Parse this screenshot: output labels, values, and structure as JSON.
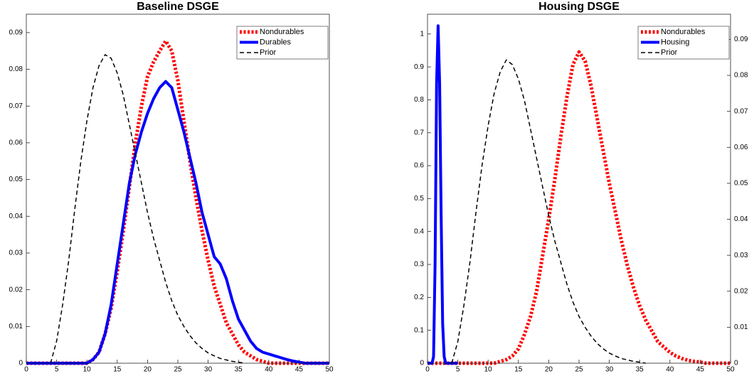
{
  "chart_data": [
    {
      "type": "line",
      "title": "Baseline DSGE",
      "x": [
        0,
        1,
        2,
        3,
        4,
        5,
        6,
        7,
        8,
        9,
        10,
        11,
        12,
        13,
        14,
        15,
        16,
        17,
        18,
        19,
        20,
        21,
        22,
        23,
        24,
        25,
        26,
        27,
        28,
        29,
        30,
        31,
        32,
        33,
        34,
        35,
        36,
        37,
        38,
        39,
        40,
        41,
        42,
        43,
        44,
        45,
        46,
        47,
        48,
        49,
        50
      ],
      "xlim": [
        0,
        50
      ],
      "xticks": [
        0,
        5,
        10,
        15,
        20,
        25,
        30,
        35,
        40,
        45,
        50
      ],
      "ylim": [
        0,
        0.095
      ],
      "yticks": [
        0,
        0.01,
        0.02,
        0.03,
        0.04,
        0.05,
        0.06,
        0.07,
        0.08,
        0.09
      ],
      "legend": "upper right",
      "series": [
        {
          "name": "Nondurables",
          "color": "#ff0000",
          "style": "dotted",
          "values": [
            0,
            0,
            0,
            0,
            0,
            0,
            0,
            0,
            0,
            0,
            0,
            0.001,
            0.003,
            0.008,
            0.015,
            0.025,
            0.036,
            0.048,
            0.06,
            0.07,
            0.078,
            0.082,
            0.085,
            0.0877,
            0.085,
            0.077,
            0.066,
            0.055,
            0.045,
            0.036,
            0.028,
            0.021,
            0.016,
            0.011,
            0.008,
            0.005,
            0.003,
            0.002,
            0.001,
            0.0005,
            0,
            0,
            0,
            0,
            0,
            0,
            0,
            0,
            0,
            0,
            0
          ]
        },
        {
          "name": "Durables",
          "color": "#0000ff",
          "style": "solid",
          "values": [
            0,
            0,
            0,
            0,
            0,
            0,
            0,
            0,
            0,
            0,
            0,
            0.001,
            0.003,
            0.008,
            0.016,
            0.027,
            0.038,
            0.049,
            0.057,
            0.063,
            0.068,
            0.072,
            0.075,
            0.0767,
            0.075,
            0.069,
            0.063,
            0.056,
            0.049,
            0.041,
            0.035,
            0.029,
            0.027,
            0.023,
            0.017,
            0.012,
            0.009,
            0.006,
            0.004,
            0.003,
            0.0025,
            0.002,
            0.0015,
            0.001,
            0.0006,
            0.0003,
            0,
            0,
            0,
            0,
            0
          ]
        },
        {
          "name": "Prior",
          "color": "#000000",
          "style": "dashed",
          "values": [
            null,
            null,
            null,
            null,
            0,
            0.006,
            0.016,
            0.028,
            0.042,
            0.055,
            0.066,
            0.075,
            0.081,
            0.084,
            0.083,
            0.079,
            0.073,
            0.065,
            0.057,
            0.049,
            0.041,
            0.034,
            0.028,
            0.022,
            0.017,
            0.013,
            0.01,
            0.0075,
            0.0055,
            0.004,
            0.0028,
            0.002,
            0.0013,
            0.0009,
            0.0005,
            0.0003,
            0,
            null,
            null,
            null,
            null,
            null,
            null,
            null,
            null,
            null,
            null,
            null,
            null,
            null,
            null
          ]
        }
      ]
    },
    {
      "type": "line",
      "title": "Housing DSGE",
      "x": [
        0,
        1,
        2,
        3,
        4,
        5,
        6,
        7,
        8,
        9,
        10,
        11,
        12,
        13,
        14,
        15,
        16,
        17,
        18,
        19,
        20,
        21,
        22,
        23,
        24,
        25,
        26,
        27,
        28,
        29,
        30,
        31,
        32,
        33,
        34,
        35,
        36,
        37,
        38,
        39,
        40,
        41,
        42,
        43,
        44,
        45,
        46,
        47,
        48,
        49,
        50
      ],
      "xlim": [
        0,
        50
      ],
      "xticks": [
        0,
        5,
        10,
        15,
        20,
        25,
        30,
        35,
        40,
        45,
        50
      ],
      "ylim": [
        0,
        1.06
      ],
      "yticks": [
        0,
        0.1,
        0.2,
        0.3,
        0.4,
        0.5,
        0.6,
        0.7,
        0.8,
        0.9,
        1
      ],
      "y2lim": [
        0,
        0.097
      ],
      "y2ticks": [
        0,
        0.01,
        0.02,
        0.03,
        0.04,
        0.05,
        0.06,
        0.07,
        0.08,
        0.09
      ],
      "legend": "upper right",
      "series": [
        {
          "name": "Nondurables",
          "color": "#ff0000",
          "style": "dotted",
          "axis": "y2",
          "values": [
            0,
            0,
            0,
            0,
            0,
            0,
            0,
            0,
            0,
            0,
            0,
            0,
            0.0005,
            0.001,
            0.002,
            0.004,
            0.008,
            0.013,
            0.02,
            0.03,
            0.04,
            0.051,
            0.063,
            0.074,
            0.083,
            0.0865,
            0.084,
            0.077,
            0.068,
            0.059,
            0.05,
            0.042,
            0.034,
            0.027,
            0.021,
            0.016,
            0.012,
            0.009,
            0.006,
            0.0045,
            0.003,
            0.002,
            0.0013,
            0.0008,
            0.0005,
            0.0003,
            0,
            0,
            0,
            0,
            0
          ]
        },
        {
          "name": "Housing",
          "color": "#0000ff",
          "style": "solid",
          "x": [
            0,
            0.5,
            0.75,
            1,
            1.25,
            1.5,
            1.75,
            2,
            2.25,
            2.5,
            2.75,
            3,
            4,
            5
          ],
          "values": [
            0,
            0,
            0,
            0.02,
            0.3,
            0.85,
            1.025,
            0.85,
            0.45,
            0.12,
            0.02,
            0,
            0,
            0
          ]
        },
        {
          "name": "Prior",
          "color": "#000000",
          "style": "dashed",
          "axis": "y2",
          "values": [
            null,
            null,
            null,
            null,
            0,
            0.006,
            0.016,
            0.028,
            0.042,
            0.055,
            0.066,
            0.075,
            0.081,
            0.0843,
            0.083,
            0.079,
            0.073,
            0.065,
            0.057,
            0.049,
            0.041,
            0.034,
            0.028,
            0.022,
            0.017,
            0.013,
            0.01,
            0.0075,
            0.0055,
            0.004,
            0.0028,
            0.002,
            0.0013,
            0.0009,
            0.0005,
            0.0003,
            0,
            null,
            null,
            null,
            null,
            null,
            null,
            null,
            null,
            null,
            null,
            null,
            null,
            null,
            null
          ]
        }
      ]
    }
  ]
}
